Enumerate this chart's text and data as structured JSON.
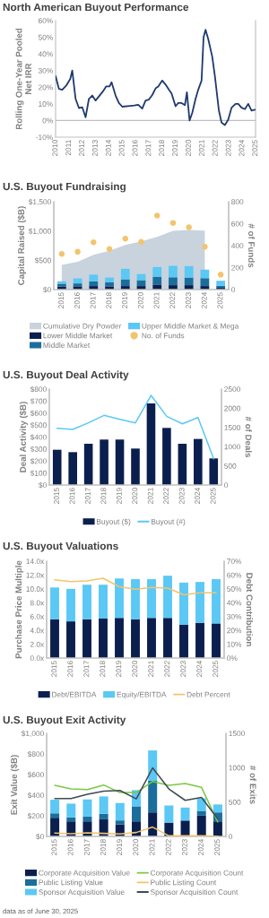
{
  "chart_data": [
    {
      "type": "line",
      "title": "North American Buyout Performance",
      "ylabel": "Rolling One-Year Pooled\nNet IRR",
      "x": [
        2010.0,
        2010.25,
        2010.5,
        2010.8,
        2011.1,
        2011.25,
        2011.5,
        2011.75,
        2012.0,
        2012.25,
        2012.5,
        2012.75,
        2013.0,
        2013.3,
        2013.55,
        2013.8,
        2014.05,
        2014.2,
        2014.5,
        2014.75,
        2015.0,
        2015.6,
        2015.9,
        2016.2,
        2016.5,
        2016.75,
        2017.0,
        2017.25,
        2017.5,
        2017.7,
        2018.0,
        2018.25,
        2018.5,
        2018.7,
        2019.0,
        2019.2,
        2019.45,
        2019.7,
        2019.85,
        2020.05,
        2020.25,
        2020.5,
        2020.7,
        2020.95,
        2021.1,
        2021.25,
        2021.45,
        2021.75,
        2021.95,
        2022.25,
        2022.45,
        2022.7,
        2022.95,
        2023.2,
        2023.5,
        2023.7,
        2023.95,
        2024.2,
        2024.45,
        2024.7,
        2024.95
      ],
      "series": [
        {
          "color": "#1f3a6e",
          "values": [
            26.7,
            19,
            18.5,
            21,
            25,
            30,
            13,
            7.5,
            8,
            2,
            13,
            15,
            12,
            15,
            17.5,
            20.5,
            20.5,
            23,
            15,
            10.5,
            8.3,
            8.8,
            9,
            9.5,
            7.2,
            12,
            12.6,
            15.3,
            19.3,
            20.4,
            24,
            21.6,
            18.5,
            16.2,
            8.6,
            10.5,
            10.5,
            9.2,
            17,
            0,
            4.5,
            13,
            18.5,
            24,
            50,
            54.5,
            49,
            38.4,
            26.7,
            6,
            -1.3,
            -2.7,
            0.5,
            7.7,
            10,
            10,
            7.7,
            6.8,
            10,
            6,
            6.5
          ]
        }
      ],
      "xlim": [
        2010,
        2025
      ],
      "xticks": [
        2010,
        2011,
        2012,
        2013,
        2014,
        2015,
        2016,
        2017,
        2018,
        2019,
        2020,
        2021,
        2022,
        2023,
        2024,
        2025
      ],
      "ylim": [
        -10,
        60
      ],
      "yticks": [
        {
          "value": -10,
          "label": "-10%"
        },
        {
          "value": 0,
          "label": "0%"
        },
        {
          "value": 10,
          "label": "10%"
        },
        {
          "value": 20,
          "label": "20%"
        },
        {
          "value": 30,
          "label": "30%"
        },
        {
          "value": 40,
          "label": "40%"
        },
        {
          "value": 50,
          "label": "50%"
        },
        {
          "value": 60,
          "label": "60%"
        }
      ],
      "ref_lines": [
        {
          "axis": "y",
          "value": 0,
          "color": "#bfbfbf"
        }
      ]
    },
    {
      "type": "bar",
      "title": "U.S. Buyout Fundraising",
      "ylabel": "Capital Raised ($B)",
      "y2label": "# of Funds",
      "stacked": true,
      "legend": "bottom",
      "categories": [
        "2015",
        "2016",
        "2017",
        "2018",
        "2019",
        "2020",
        "2021",
        "2022",
        "2023",
        "2024",
        "2025"
      ],
      "series": [
        {
          "name": "Cumulative Dry Powder",
          "type": "area",
          "color": "#c8d3de",
          "values": [
            422,
            473,
            595,
            661,
            763,
            824,
            900,
            1002,
            1017,
            1007,
            null
          ]
        },
        {
          "name": "Lower Middle Market",
          "type": "bar",
          "color": "#0b1f4f",
          "values": [
            50,
            55,
            60,
            55,
            60,
            60,
            85,
            75,
            75,
            60,
            30
          ]
        },
        {
          "name": "Middle Market",
          "type": "bar",
          "color": "#1b6e9c",
          "values": [
            50,
            50,
            80,
            70,
            115,
            100,
            135,
            135,
            130,
            135,
            35
          ]
        },
        {
          "name": "Upper Middle Market & Mega",
          "type": "bar",
          "color": "#5bc8f5",
          "values": [
            40,
            85,
            115,
            80,
            180,
            105,
            165,
            195,
            195,
            145,
            85
          ]
        },
        {
          "name": "No. of Funds",
          "type": "scatter",
          "axis": "y2",
          "color": "#f2c46d",
          "values": [
            325,
            344,
            431,
            369,
            464,
            434,
            673,
            607,
            567,
            390,
            136
          ]
        }
      ],
      "ylim": [
        0,
        1500
      ],
      "yticks": [
        {
          "value": 0,
          "label": "$0"
        },
        {
          "value": 500,
          "label": "$500"
        },
        {
          "value": 1000,
          "label": "$1,000"
        },
        {
          "value": 1500,
          "label": "$1,500"
        }
      ],
      "y2lim": [
        0,
        800
      ],
      "y2ticks": [
        0,
        200,
        400,
        600,
        800
      ]
    },
    {
      "type": "bar",
      "title": "U.S. Buyout Deal Activity",
      "ylabel": "Deal Activity ($B)",
      "y2label": "# of Deals",
      "legend": "bottom",
      "categories": [
        "2015",
        "2016",
        "2017",
        "2018",
        "2019",
        "2020",
        "2021",
        "2022",
        "2023",
        "2024",
        "2025"
      ],
      "series": [
        {
          "name": "Buyout ($)",
          "type": "bar",
          "color": "#0b1f4f",
          "values": [
            294,
            274,
            344,
            379,
            379,
            304,
            681,
            476,
            344,
            384,
            222
          ]
        },
        {
          "name": "Buyout (#)",
          "type": "line",
          "axis": "y2",
          "color": "#5bc8f5",
          "values": [
            1480,
            1449,
            1620,
            1814,
            1713,
            1620,
            2336,
            1791,
            1596,
            1760,
            685
          ]
        }
      ],
      "ylim": [
        0,
        800
      ],
      "yticks": [
        {
          "value": 0,
          "label": "$0"
        },
        {
          "value": 100,
          "label": "$100"
        },
        {
          "value": 200,
          "label": "$200"
        },
        {
          "value": 300,
          "label": "$300"
        },
        {
          "value": 400,
          "label": "$400"
        },
        {
          "value": 500,
          "label": "$500"
        },
        {
          "value": 600,
          "label": "$600"
        },
        {
          "value": 700,
          "label": "$700"
        },
        {
          "value": 800,
          "label": "$800"
        }
      ],
      "y2lim": [
        0,
        2500
      ],
      "y2ticks": [
        0,
        500,
        1000,
        1500,
        2000,
        2500
      ]
    },
    {
      "type": "bar",
      "title": "U.S. Buyout Valuations",
      "ylabel": "Purchase Price Multiple",
      "y2label": "Debt Contribution",
      "stacked": true,
      "legend": "bottom",
      "categories": [
        "2015",
        "2016",
        "2017",
        "2018",
        "2019",
        "2020",
        "2021",
        "2022",
        "2023",
        "2024",
        "2025"
      ],
      "series": [
        {
          "name": "Debt/EBITDA",
          "type": "bar",
          "color": "#0b1f4f",
          "values": [
            5.6,
            5.3,
            5.6,
            5.7,
            5.8,
            5.6,
            5.8,
            5.8,
            4.8,
            5.1,
            5.0
          ]
        },
        {
          "name": "Equity/EBITDA",
          "type": "bar",
          "color": "#5bc8f5",
          "values": [
            4.6,
            4.7,
            5.0,
            4.9,
            5.7,
            5.8,
            5.6,
            6.1,
            6.1,
            5.9,
            6.4
          ]
        },
        {
          "name": "Debt Percent",
          "type": "line",
          "axis": "y2",
          "color": "#f2c46d",
          "values": [
            56.5,
            55.2,
            55.8,
            57.7,
            51.5,
            49.8,
            51.1,
            50.6,
            45.7,
            47.2,
            47.2
          ]
        }
      ],
      "ylim": [
        0,
        14
      ],
      "yticks": [
        {
          "value": 0,
          "label": "0.0x"
        },
        {
          "value": 2,
          "label": "2.0x"
        },
        {
          "value": 4,
          "label": "4.0x"
        },
        {
          "value": 6,
          "label": "6.0x"
        },
        {
          "value": 8,
          "label": "8.0x"
        },
        {
          "value": 10,
          "label": "10.0x"
        },
        {
          "value": 12,
          "label": "12.0x"
        },
        {
          "value": 14,
          "label": "14.0x"
        }
      ],
      "y2lim": [
        0,
        70
      ],
      "y2ticks": [
        {
          "value": 0,
          "label": "0%"
        },
        {
          "value": 10,
          "label": "10%"
        },
        {
          "value": 20,
          "label": "20%"
        },
        {
          "value": 30,
          "label": "30%"
        },
        {
          "value": 40,
          "label": "40%"
        },
        {
          "value": 50,
          "label": "50%"
        },
        {
          "value": 60,
          "label": "60%"
        },
        {
          "value": 70,
          "label": "70%"
        }
      ]
    },
    {
      "type": "bar",
      "title": "U.S. Buyout Exit Activity",
      "ylabel": "Exit Value ($B)",
      "y2label": "# of Exits",
      "stacked": true,
      "legend": "bottom",
      "categories": [
        "2015",
        "2016",
        "2017",
        "2018",
        "2019",
        "2020",
        "2021",
        "2022",
        "2023",
        "2024",
        "2025"
      ],
      "series": [
        {
          "name": "Corporate Acquisition Value",
          "type": "bar",
          "color": "#0b1f4f",
          "values": [
            181,
            146,
            146,
            166,
            117,
            146,
            233,
            134,
            152,
            201,
            146
          ]
        },
        {
          "name": "Public Listing Value",
          "type": "bar",
          "color": "#1b6e9c",
          "values": [
            43,
            38,
            46,
            53,
            38,
            146,
            306,
            0,
            5,
            47,
            87
          ]
        },
        {
          "name": "Sponsor Acquisition Value",
          "type": "bar",
          "color": "#5bc8f5",
          "values": [
            132,
            134,
            167,
            169,
            169,
            157,
            295,
            166,
            123,
            122,
            77
          ]
        },
        {
          "name": "Corporate Acquisition Count",
          "type": "line",
          "axis": "y2",
          "color": "#7ac943",
          "values": [
            743,
            691,
            682,
            748,
            638,
            638,
            800,
            743,
            770,
            713,
            210
          ]
        },
        {
          "name": "Public Listing Count",
          "type": "line",
          "axis": "y2",
          "color": "#f2c46d",
          "values": [
            48,
            39,
            52,
            44,
            35,
            57,
            136,
            9,
            9,
            9,
            4
          ]
        },
        {
          "name": "Sponsor Acquisition Count",
          "type": "line",
          "axis": "y2",
          "color": "#404a54",
          "values": [
            551,
            551,
            612,
            660,
            669,
            547,
            997,
            691,
            525,
            568,
            254
          ]
        }
      ],
      "ylim": [
        0,
        1000
      ],
      "yticks": [
        {
          "value": 0,
          "label": "$0"
        },
        {
          "value": 200,
          "label": "$200"
        },
        {
          "value": 400,
          "label": "$400"
        },
        {
          "value": 600,
          "label": "$600"
        },
        {
          "value": 800,
          "label": "$800"
        },
        {
          "value": 1000,
          "label": "$1,000"
        }
      ],
      "y2lim": [
        0,
        1500
      ],
      "y2ticks": [
        0,
        500,
        1000,
        1500
      ],
      "annotations": [
        "data as of June 30, 2025"
      ]
    }
  ]
}
